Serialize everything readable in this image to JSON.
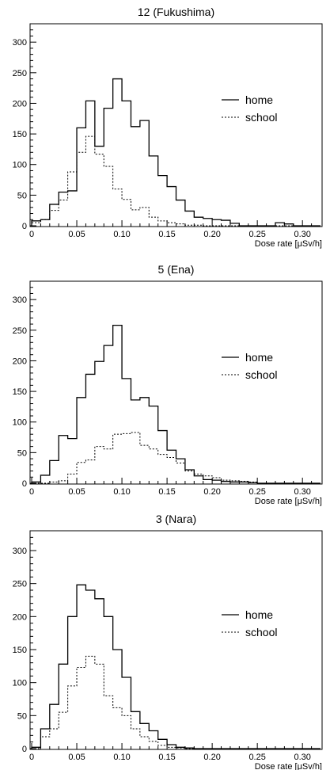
{
  "chart_data": [
    {
      "type": "bar",
      "title": "12 (Fukushima)",
      "xlabel": "Dose rate [μSv/h]",
      "ylabel": "",
      "xlim": [
        0,
        0.32
      ],
      "ylim": [
        0,
        330
      ],
      "bin_width": 0.01,
      "xticks": [
        0,
        0.05,
        0.1,
        0.15,
        0.2,
        0.25,
        0.3
      ],
      "xtick_labels": [
        "0",
        "0.05",
        "0.10",
        "0.15",
        "0.20",
        "0.25",
        "0.30"
      ],
      "yticks": [
        0,
        50,
        100,
        150,
        200,
        250,
        300
      ],
      "ytick_labels": [
        "0",
        "50",
        "100",
        "150",
        "200",
        "250",
        "300"
      ],
      "legend_position": "right",
      "series": [
        {
          "name": "home",
          "style": "solid",
          "values": [
            8,
            10,
            35,
            55,
            57,
            160,
            204,
            130,
            192,
            240,
            204,
            162,
            172,
            114,
            82,
            64,
            42,
            24,
            14,
            12,
            10,
            9,
            4,
            0,
            0,
            0,
            0,
            5,
            3,
            0,
            0,
            0
          ]
        },
        {
          "name": "school",
          "style": "dotted",
          "values": [
            5,
            10,
            25,
            42,
            88,
            120,
            146,
            117,
            97,
            60,
            43,
            26,
            30,
            14,
            8,
            5,
            3,
            1,
            1,
            0,
            0,
            0,
            0,
            0,
            0,
            0,
            0,
            0,
            0,
            0,
            0,
            0
          ]
        }
      ]
    },
    {
      "type": "bar",
      "title": "5 (Ena)",
      "xlabel": "Dose rate [μSv/h]",
      "ylabel": "",
      "xlim": [
        0,
        0.32
      ],
      "ylim": [
        0,
        330
      ],
      "bin_width": 0.01,
      "xticks": [
        0,
        0.05,
        0.1,
        0.15,
        0.2,
        0.25,
        0.3
      ],
      "xtick_labels": [
        "0",
        "0.05",
        "0.10",
        "0.15",
        "0.20",
        "0.25",
        "0.30"
      ],
      "yticks": [
        0,
        50,
        100,
        150,
        200,
        250,
        300
      ],
      "ytick_labels": [
        "0",
        "50",
        "100",
        "150",
        "200",
        "250",
        "300"
      ],
      "legend_position": "right",
      "series": [
        {
          "name": "home",
          "style": "solid",
          "values": [
            2,
            13,
            37,
            78,
            73,
            140,
            178,
            199,
            225,
            258,
            171,
            136,
            140,
            126,
            86,
            54,
            40,
            22,
            12,
            6,
            5,
            3,
            2,
            2,
            1,
            0,
            0,
            0,
            0,
            0,
            0,
            0
          ]
        },
        {
          "name": "school",
          "style": "dotted",
          "values": [
            0,
            0,
            2,
            4,
            15,
            34,
            38,
            60,
            56,
            80,
            81,
            83,
            62,
            56,
            47,
            42,
            33,
            20,
            15,
            12,
            9,
            5,
            4,
            3,
            2,
            0,
            0,
            0,
            0,
            0,
            0,
            0
          ]
        }
      ]
    },
    {
      "type": "bar",
      "title": "3 (Nara)",
      "xlabel": "Dose rate [μSv/h]",
      "ylabel": "",
      "xlim": [
        0,
        0.32
      ],
      "ylim": [
        0,
        330
      ],
      "bin_width": 0.01,
      "xticks": [
        0,
        0.05,
        0.1,
        0.15,
        0.2,
        0.25,
        0.3
      ],
      "xtick_labels": [
        "0",
        "0.05",
        "0.10",
        "0.15",
        "0.20",
        "0.25",
        "0.30"
      ],
      "yticks": [
        0,
        50,
        100,
        150,
        200,
        250,
        300
      ],
      "ytick_labels": [
        "0",
        "50",
        "100",
        "150",
        "200",
        "250",
        "300"
      ],
      "legend_position": "right",
      "series": [
        {
          "name": "home",
          "style": "solid",
          "values": [
            2,
            30,
            67,
            128,
            200,
            248,
            240,
            227,
            200,
            150,
            108,
            56,
            38,
            27,
            14,
            6,
            2,
            1,
            0,
            0,
            0,
            0,
            0,
            0,
            0,
            0,
            0,
            0,
            0,
            0,
            0,
            0
          ]
        },
        {
          "name": "school",
          "style": "dotted",
          "values": [
            0,
            18,
            30,
            55,
            95,
            123,
            140,
            128,
            80,
            62,
            50,
            30,
            18,
            11,
            5,
            2,
            1,
            0,
            0,
            0,
            0,
            0,
            0,
            0,
            0,
            0,
            0,
            0,
            0,
            0,
            0,
            0
          ]
        }
      ]
    }
  ]
}
